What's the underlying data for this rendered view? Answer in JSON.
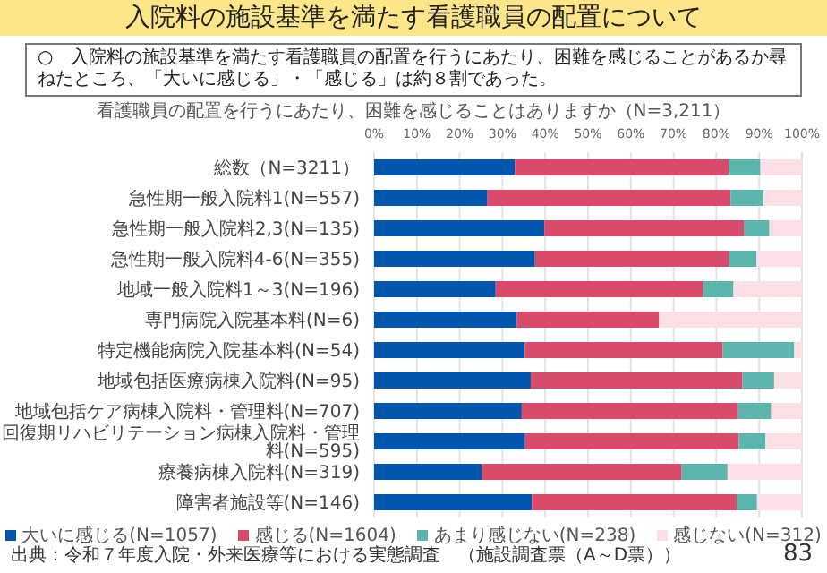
{
  "chart_data": {
    "type": "bar",
    "orientation": "horizontal",
    "stacked": true,
    "title": "入院料の施設基準を満たす看護職員の配置について",
    "subtitle": "○　入院料の施設基準を満たす看護職員の配置を行うにあたり、困難を感じることがあるか尋ねたところ、「大いに感じる」・「感じる」は約８割であった。",
    "xlabel": "看護職員の配置を行うにあたり、困難を感じることはありますか（N=3,211）",
    "categories": [
      "総数（N=3211）",
      "急性期一般入院料1(N=557)",
      "急性期一般入院料2,3(N=135)",
      "急性期一般入院料4-6(N=355)",
      "地域一般入院料1～3(N=196)",
      "専門病院入院基本料(N=6)",
      "特定機能病院入院基本料(N=54)",
      "地域包括医療病棟入院料(N=95)",
      "地域包括ケア病棟入院料・管理料(N=707)",
      "回復期リハビリテーション病棟入院料・管理料(N=595)",
      "療養病棟入院料(N=319)",
      "障害者施設等(N=146)"
    ],
    "series": [
      {
        "name": "大いに感じる(N=1057)",
        "color": "#0055ad",
        "values": [
          32.9,
          26.5,
          39.8,
          37.6,
          28.4,
          33.3,
          35.2,
          36.6,
          34.5,
          35.3,
          25.2,
          36.9
        ]
      },
      {
        "name": "感じる(N=1604)",
        "color": "#d94b6b",
        "values": [
          50.0,
          56.8,
          46.6,
          45.4,
          48.5,
          33.3,
          46.3,
          49.5,
          50.6,
          49.9,
          46.7,
          47.9
        ]
      },
      {
        "name": "あまり感じない(N=238)",
        "color": "#5cb6ad",
        "values": [
          7.4,
          7.7,
          6.0,
          6.4,
          7.1,
          0,
          16.7,
          7.4,
          7.7,
          6.3,
          10.7,
          4.7
        ]
      },
      {
        "name": "感じない(N=312)",
        "color": "#fde0e5",
        "values": [
          9.7,
          9.0,
          7.6,
          10.6,
          16.0,
          33.4,
          1.8,
          6.5,
          7.2,
          8.5,
          17.4,
          10.5
        ]
      }
    ],
    "xlim": [
      0,
      100
    ],
    "xticks": [
      {
        "value": 0,
        "label": "0%"
      },
      {
        "value": 10,
        "label": "10%"
      },
      {
        "value": 20,
        "label": "20%"
      },
      {
        "value": 30,
        "label": "30%"
      },
      {
        "value": 40,
        "label": "40%"
      },
      {
        "value": 50,
        "label": "50%"
      },
      {
        "value": 60,
        "label": "60%"
      },
      {
        "value": 70,
        "label": "70%"
      },
      {
        "value": 80,
        "label": "80%"
      },
      {
        "value": 90,
        "label": "90%"
      },
      {
        "value": 100,
        "label": "100%"
      }
    ],
    "grid": "x",
    "legend": "bottom",
    "annotations": [
      "出典：令和７年度入院・外来医療等における実態調査　（施設調査票（A～D票））",
      "83"
    ]
  }
}
